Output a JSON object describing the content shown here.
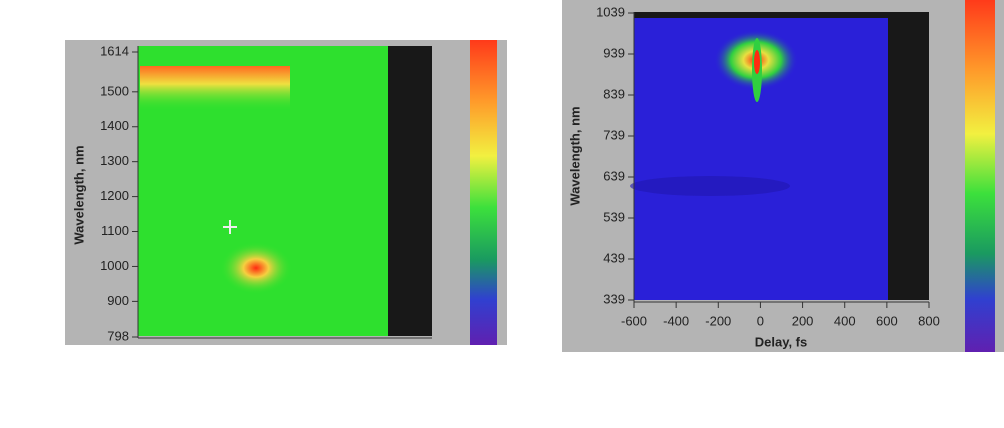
{
  "chart_data": [
    {
      "type": "heatmap",
      "ylabel": "Wavelength, nm",
      "ylim": [
        798,
        1614
      ],
      "yticks": [
        798,
        900,
        1000,
        1100,
        1200,
        1300,
        1400,
        1500,
        1614
      ]
    },
    {
      "type": "heatmap",
      "ylabel": "Wavelength, nm",
      "xlabel": "Delay, fs",
      "ylim": [
        339,
        1039
      ],
      "yticks": [
        339,
        439,
        539,
        639,
        739,
        839,
        939,
        1039
      ],
      "xlim": [
        -600,
        800
      ],
      "xticks": [
        -600,
        -400,
        -200,
        0,
        200,
        400,
        600,
        800
      ]
    }
  ]
}
